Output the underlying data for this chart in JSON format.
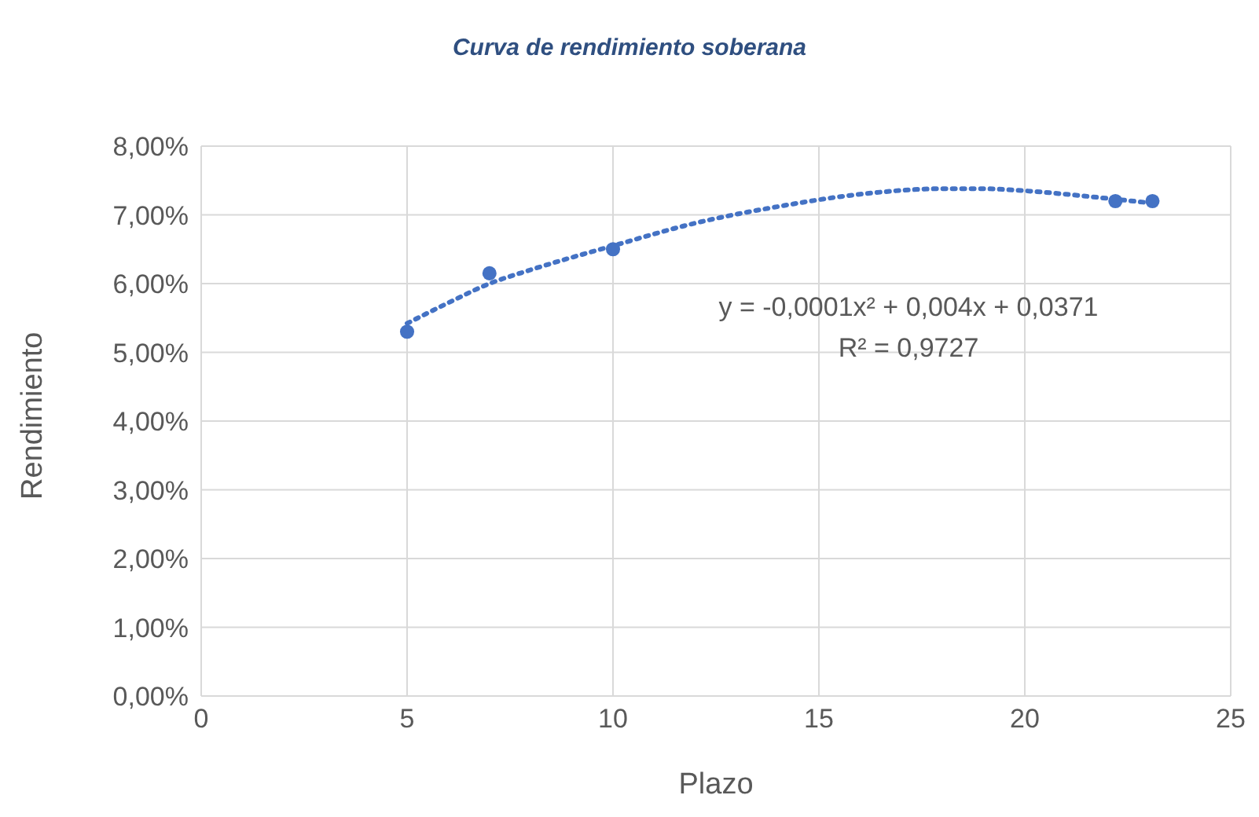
{
  "chart_data": {
    "type": "scatter",
    "title": "Curva de rendimiento soberana",
    "xlabel": "Plazo",
    "ylabel": "Rendimiento",
    "xlim": [
      0,
      25
    ],
    "xticks": [
      0,
      5,
      10,
      15,
      20,
      25
    ],
    "ylim": [
      0,
      8
    ],
    "yticks": [
      {
        "value": 0,
        "label": "0,00%"
      },
      {
        "value": 1,
        "label": "1,00%"
      },
      {
        "value": 2,
        "label": "2,00%"
      },
      {
        "value": 3,
        "label": "3,00%"
      },
      {
        "value": 4,
        "label": "4,00%"
      },
      {
        "value": 5,
        "label": "5,00%"
      },
      {
        "value": 6,
        "label": "6,00%"
      },
      {
        "value": 7,
        "label": "7,00%"
      },
      {
        "value": 8,
        "label": "8,00%"
      }
    ],
    "grid": true,
    "legend": false,
    "series": [
      {
        "color": "#4472c4",
        "marker": "circle",
        "x": [
          5,
          7,
          10,
          22.2,
          23.1
        ],
        "values": [
          5.3,
          6.15,
          6.5,
          7.2,
          7.2
        ]
      },
      {
        "type": "line",
        "color": "#4472c4",
        "marker": "none",
        "line_style": "dotted",
        "x": [
          5,
          6,
          7,
          8,
          10,
          12,
          14,
          16,
          18,
          19,
          20,
          21,
          22,
          23.1
        ],
        "values": [
          5.42,
          5.72,
          6.0,
          6.2,
          6.55,
          6.88,
          7.12,
          7.3,
          7.38,
          7.38,
          7.35,
          7.3,
          7.24,
          7.17
        ]
      }
    ],
    "annotations": [
      "y = -0,0001x² + 0,004x + 0,0371",
      "R² = 0,9727"
    ]
  }
}
